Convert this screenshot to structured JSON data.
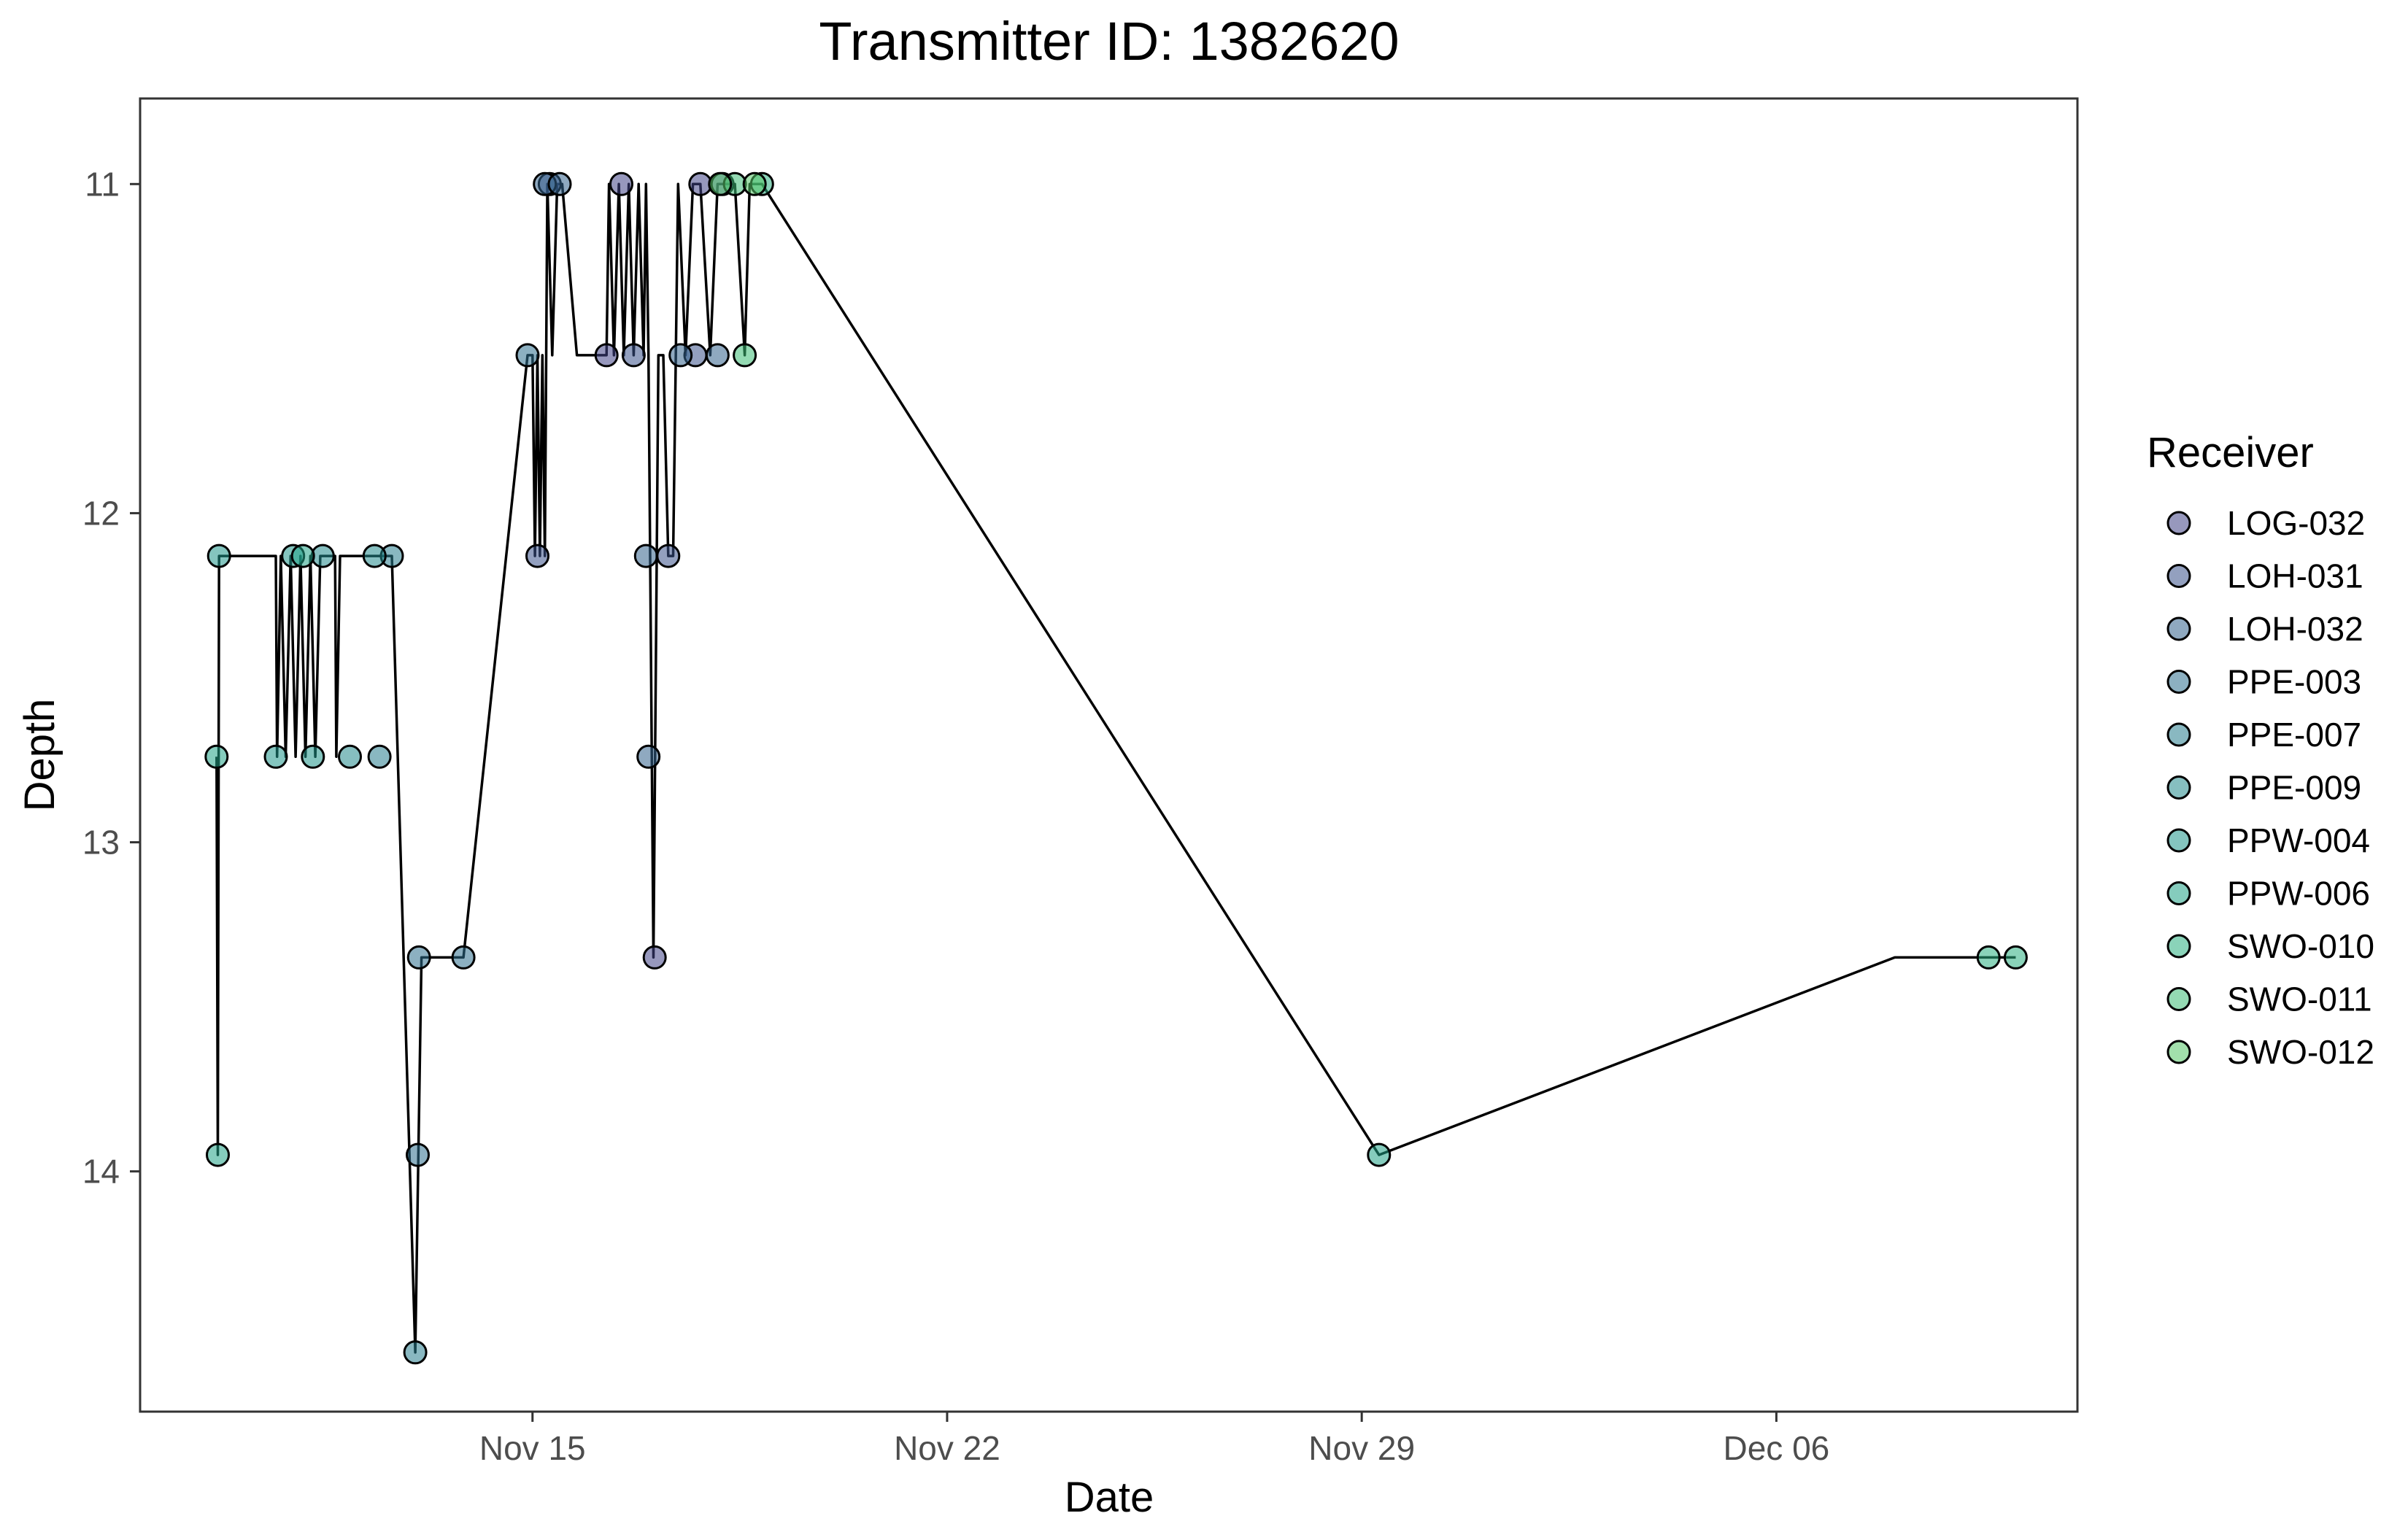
{
  "chart_data": {
    "type": "scatter",
    "title": "Transmitter ID: 1382620",
    "xlabel": "Date",
    "ylabel": "Depth",
    "x_type": "datetime",
    "xlim": [
      "2023-11-08T09:00",
      "2023-12-11T02:00"
    ],
    "ylim": [
      10.74,
      14.73
    ],
    "y_reversed": true,
    "x_ticks": [
      {
        "value": "2023-11-15",
        "label": "Nov 15"
      },
      {
        "value": "2023-11-22",
        "label": "Nov 22"
      },
      {
        "value": "2023-11-29",
        "label": "Nov 29"
      },
      {
        "value": "2023-12-06",
        "label": "Dec 06"
      }
    ],
    "y_ticks": [
      {
        "value": 11,
        "label": "11"
      },
      {
        "value": 12,
        "label": "12"
      },
      {
        "value": 13,
        "label": "13"
      },
      {
        "value": 14,
        "label": "14"
      }
    ],
    "grid": false,
    "legend": {
      "title": "Receiver",
      "position": "right"
    },
    "series": [
      {
        "name": "LOG-032",
        "color": "#414487",
        "points": [
          [
            "2023-11-16T06:00",
            11.52
          ],
          [
            "2023-11-16T12:00",
            11.0
          ],
          [
            "2023-11-17T01:30",
            13.35
          ],
          [
            "2023-11-17T20:00",
            11.0
          ]
        ]
      },
      {
        "name": "LOH-031",
        "color": "#3b528b",
        "points": [
          [
            "2023-11-15T02:00",
            12.13
          ],
          [
            "2023-11-15T07:00",
            11.0
          ],
          [
            "2023-11-16T17:00",
            11.52
          ],
          [
            "2023-11-17T07:00",
            12.13
          ],
          [
            "2023-11-17T18:00",
            11.52
          ],
          [
            "2023-11-18T05:00",
            11.0
          ]
        ]
      },
      {
        "name": "LOH-032",
        "color": "#33638d",
        "points": [
          [
            "2023-11-15T05:00",
            11.0
          ],
          [
            "2023-11-15T11:00",
            11.0
          ],
          [
            "2023-11-16T22:00",
            12.13
          ],
          [
            "2023-11-16T23:00",
            12.74
          ],
          [
            "2023-11-17T12:00",
            11.52
          ],
          [
            "2023-11-18T03:00",
            11.52
          ]
        ]
      },
      {
        "name": "PPE-003",
        "color": "#2d708e",
        "points": [
          [
            "2023-11-13T02:00",
            13.35
          ],
          [
            "2023-11-13T01:30",
            13.95
          ],
          [
            "2023-11-13T20:00",
            13.35
          ],
          [
            "2023-11-14T22:00",
            11.52
          ]
        ]
      },
      {
        "name": "PPE-007",
        "color": "#287d8e",
        "points": [
          [
            "2023-11-13T00:30",
            14.55
          ],
          [
            "2023-11-12T10:00",
            12.74
          ],
          [
            "2023-11-12T15:00",
            12.13
          ]
        ]
      },
      {
        "name": "PPE-009",
        "color": "#238a8d",
        "points": [
          [
            "2023-11-11T11:00",
            12.13
          ],
          [
            "2023-11-11T22:00",
            12.74
          ],
          [
            "2023-11-12T08:00",
            12.13
          ]
        ]
      },
      {
        "name": "PPW-004",
        "color": "#1f968b",
        "points": [
          [
            "2023-11-09T17:00",
            12.13
          ],
          [
            "2023-11-10T16:00",
            12.74
          ],
          [
            "2023-11-10T23:00",
            12.13
          ],
          [
            "2023-11-11T07:00",
            12.74
          ]
        ]
      },
      {
        "name": "PPW-006",
        "color": "#20a386",
        "points": [
          [
            "2023-11-09T16:00",
            12.74
          ],
          [
            "2023-11-09T16:30",
            13.95
          ],
          [
            "2023-11-11T03:00",
            12.13
          ],
          [
            "2023-11-29T07:00",
            13.95
          ]
        ]
      },
      {
        "name": "SWO-010",
        "color": "#29af7f",
        "points": [
          [
            "2023-12-10T01:00",
            13.35
          ],
          [
            "2023-12-09T14:00",
            13.35
          ],
          [
            "2023-11-18T21:00",
            11.0
          ]
        ]
      },
      {
        "name": "SWO-011",
        "color": "#3dbc74",
        "points": [
          [
            "2023-11-18T10:00",
            11.0
          ],
          [
            "2023-11-18T14:00",
            11.52
          ]
        ]
      },
      {
        "name": "SWO-012",
        "color": "#56c667",
        "points": [
          [
            "2023-11-18T04:00",
            11.0
          ],
          [
            "2023-11-18T18:00",
            11.0
          ]
        ]
      }
    ],
    "path": [
      [
        "2023-11-09T16:00",
        12.74
      ],
      [
        "2023-11-09T16:30",
        13.95
      ],
      [
        "2023-11-09T17:00",
        12.13
      ],
      [
        "2023-11-10T16:00",
        12.13
      ],
      [
        "2023-11-10T16:30",
        12.74
      ],
      [
        "2023-11-10T18:00",
        12.13
      ],
      [
        "2023-11-10T20:00",
        12.74
      ],
      [
        "2023-11-10T22:00",
        12.13
      ],
      [
        "2023-11-11T00:00",
        12.74
      ],
      [
        "2023-11-11T02:00",
        12.13
      ],
      [
        "2023-11-11T04:00",
        12.74
      ],
      [
        "2023-11-11T06:00",
        12.13
      ],
      [
        "2023-11-11T08:00",
        12.74
      ],
      [
        "2023-11-11T10:00",
        12.13
      ],
      [
        "2023-11-11T16:00",
        12.13
      ],
      [
        "2023-11-11T16:30",
        12.74
      ],
      [
        "2023-11-11T18:00",
        12.13
      ],
      [
        "2023-11-12T15:00",
        12.13
      ],
      [
        "2023-11-13T00:30",
        14.55
      ],
      [
        "2023-11-13T03:00",
        13.35
      ],
      [
        "2023-11-13T20:00",
        13.35
      ],
      [
        "2023-11-14T22:00",
        11.52
      ],
      [
        "2023-11-15T00:00",
        11.52
      ],
      [
        "2023-11-15T01:00",
        12.13
      ],
      [
        "2023-11-15T02:00",
        11.52
      ],
      [
        "2023-11-15T03:00",
        12.13
      ],
      [
        "2023-11-15T04:00",
        11.52
      ],
      [
        "2023-11-15T05:00",
        12.13
      ],
      [
        "2023-11-15T06:00",
        11.0
      ],
      [
        "2023-11-15T08:00",
        11.52
      ],
      [
        "2023-11-15T10:00",
        11.0
      ],
      [
        "2023-11-15T12:00",
        11.0
      ],
      [
        "2023-11-15T18:00",
        11.52
      ],
      [
        "2023-11-16T06:00",
        11.52
      ],
      [
        "2023-11-16T07:00",
        11.0
      ],
      [
        "2023-11-16T09:00",
        11.52
      ],
      [
        "2023-11-16T11:00",
        11.0
      ],
      [
        "2023-11-16T13:00",
        11.52
      ],
      [
        "2023-11-16T15:00",
        11.0
      ],
      [
        "2023-11-16T17:00",
        11.52
      ],
      [
        "2023-11-16T19:00",
        11.0
      ],
      [
        "2023-11-16T21:00",
        11.52
      ],
      [
        "2023-11-16T22:00",
        11.0
      ],
      [
        "2023-11-16T23:00",
        11.52
      ],
      [
        "2023-11-17T01:00",
        13.35
      ],
      [
        "2023-11-17T03:00",
        11.52
      ],
      [
        "2023-11-17T05:00",
        11.52
      ],
      [
        "2023-11-17T07:00",
        12.13
      ],
      [
        "2023-11-17T09:00",
        12.13
      ],
      [
        "2023-11-17T11:00",
        11.0
      ],
      [
        "2023-11-17T14:00",
        11.52
      ],
      [
        "2023-11-17T17:00",
        11.0
      ],
      [
        "2023-11-17T20:00",
        11.0
      ],
      [
        "2023-11-18T00:00",
        11.52
      ],
      [
        "2023-11-18T03:00",
        11.0
      ],
      [
        "2023-11-18T10:00",
        11.0
      ],
      [
        "2023-11-18T14:00",
        11.52
      ],
      [
        "2023-11-18T16:00",
        11.0
      ],
      [
        "2023-11-18T21:00",
        11.0
      ],
      [
        "2023-11-29T07:00",
        13.95
      ],
      [
        "2023-12-08T00:00",
        13.35
      ],
      [
        "2023-12-10T01:00",
        13.35
      ]
    ]
  }
}
